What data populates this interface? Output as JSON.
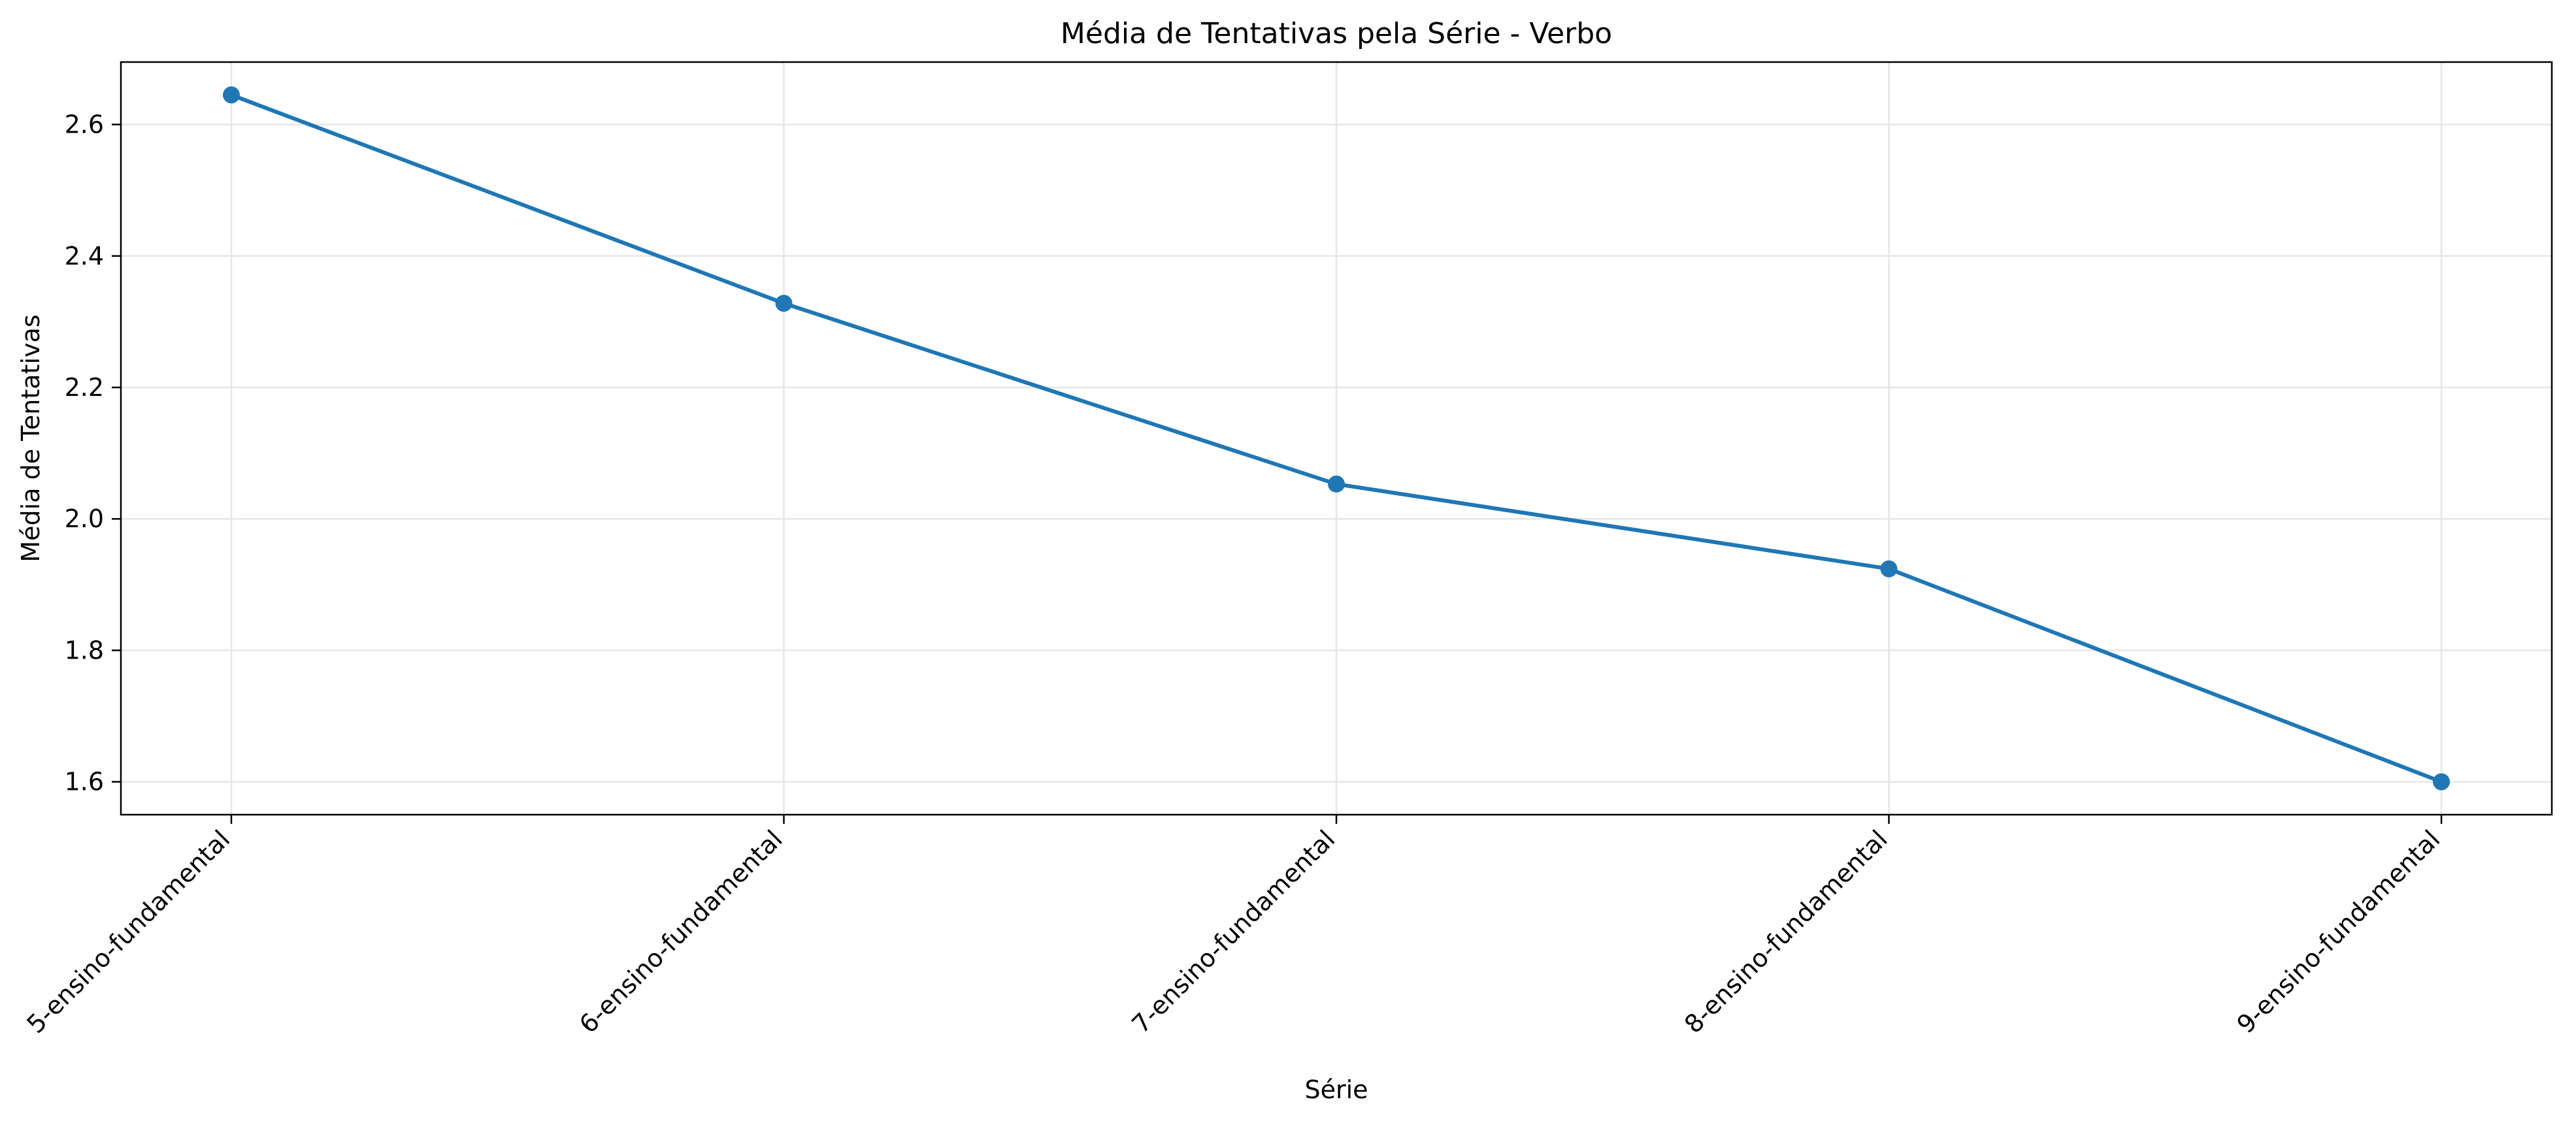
{
  "chart_data": {
    "type": "line",
    "title": "Média de Tentativas pela Série - Verbo",
    "xlabel": "Série",
    "ylabel": "Média de Tentativas",
    "categories": [
      "5-ensino-fundamental",
      "6-ensino-fundamental",
      "7-ensino-fundamental",
      "8-ensino-fundamental",
      "9-ensino-fundamental"
    ],
    "series": [
      {
        "values": [
          2.645,
          2.328,
          2.053,
          1.924,
          1.6
        ],
        "color": "#1f77b4"
      }
    ],
    "ylim": [
      1.55,
      2.695
    ],
    "yticks": [
      "1.6",
      "1.8",
      "2.0",
      "2.2",
      "2.4",
      "2.6"
    ],
    "grid": true,
    "legend": "none"
  }
}
